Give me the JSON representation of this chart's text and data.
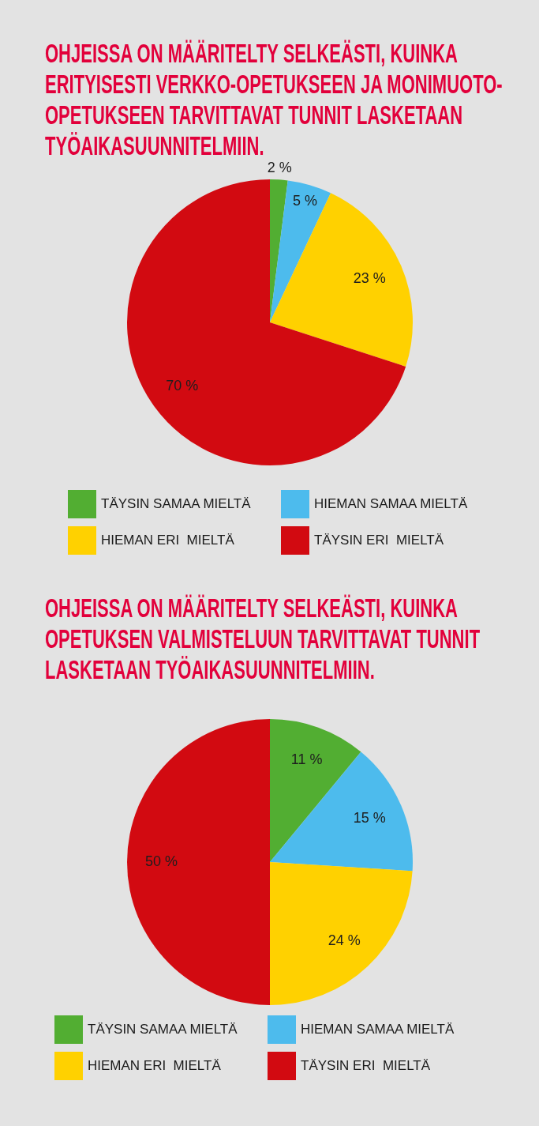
{
  "chart_data": [
    {
      "type": "pie",
      "title": "OHJEISSA ON MÄÄRITELTY SELKEÄSTI, KUINKA ERITYISESTI VERKKO-OPETUKSEEN JA MONIMUOTO-OPETUKSEEN TARVITTAVAT TUNNIT LASKETAAN TYÖAIKASUUNNITELMIIN.",
      "categories": [
        "TÄYSIN SAMAA MIELTÄ",
        "HIEMAN SAMAA MIELTÄ",
        "HIEMAN ERI  MIELTÄ",
        "TÄYSIN ERI  MIELTÄ"
      ],
      "values": [
        2,
        5,
        23,
        70
      ],
      "colors": [
        "#52ae32",
        "#4dbbed",
        "#ffd100",
        "#d20a11"
      ],
      "value_labels": [
        "2 %",
        "5 %",
        "23 %",
        "70 %"
      ],
      "legend": "bottom"
    },
    {
      "type": "pie",
      "title": "OHJEISSA ON MÄÄRITELTY SELKEÄSTI, KUINKA OPETUKSEN VALMISTELUUN TARVITTAVAT TUNNIT LASKETAAN TYÖAIKASUUNNITELMIIN.",
      "categories": [
        "TÄYSIN SAMAA MIELTÄ",
        "HIEMAN SAMAA MIELTÄ",
        "HIEMAN ERI  MIELTÄ",
        "TÄYSIN ERI  MIELTÄ"
      ],
      "values": [
        11,
        15,
        24,
        50
      ],
      "colors": [
        "#52ae32",
        "#4dbbed",
        "#ffd100",
        "#d20a11"
      ],
      "value_labels": [
        "11 %",
        "15 %",
        "24 %",
        "50 %"
      ],
      "legend": "bottom"
    }
  ]
}
